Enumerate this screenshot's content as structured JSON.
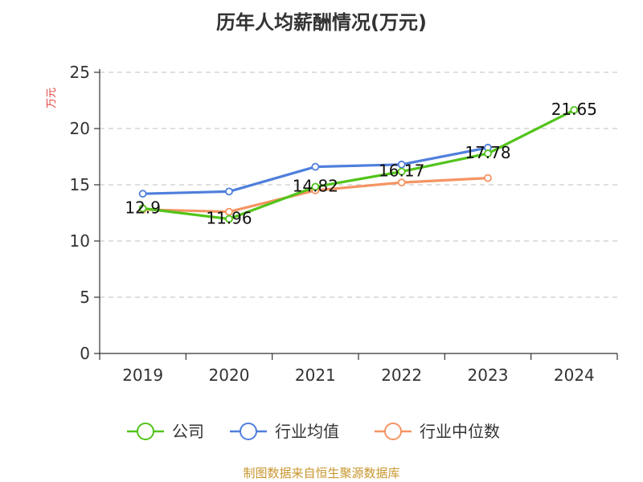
{
  "title": "历年人均薪酬情况(万元)",
  "footer": "制图数据来自恒生聚源数据库",
  "chart_data": {
    "type": "line",
    "title": "历年人均薪酬情况(万元)",
    "ylabel": "万元",
    "ylim": [
      0,
      25
    ],
    "yticks": [
      0,
      5,
      10,
      15,
      20,
      25
    ],
    "grid": true,
    "legend_position": "bottom",
    "categories": [
      "2019",
      "2020",
      "2021",
      "2022",
      "2023",
      "2024"
    ],
    "series": [
      {
        "name": "公司",
        "color": "#52c41a",
        "values": [
          12.9,
          11.96,
          14.82,
          16.17,
          17.78,
          21.65
        ],
        "labels": [
          "12.9",
          "11.96",
          "14.82",
          "16.17",
          "17.78",
          "21.65"
        ]
      },
      {
        "name": "行业均值",
        "color": "#4f7fdc",
        "values": [
          14.2,
          14.4,
          16.6,
          16.8,
          18.3,
          null
        ]
      },
      {
        "name": "行业中位数",
        "color": "#f59462",
        "values": [
          12.8,
          12.6,
          14.5,
          15.2,
          15.6,
          null
        ]
      }
    ]
  }
}
